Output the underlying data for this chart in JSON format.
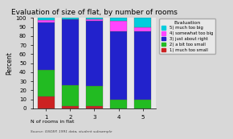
{
  "title": "Evaluation of size of flat, by number of rooms",
  "xlabel": "N of rooms in flat",
  "ylabel": "Percent",
  "source": "Source: GSOEP, 1991 data, student subsample",
  "categories": [
    1,
    2,
    3,
    4,
    5
  ],
  "legend_title": "Evaluation",
  "legend_labels": [
    "5) much too big",
    "4) somewhat too big",
    "3) just about right",
    "2) a bit too small",
    "1) much too small"
  ],
  "colors": [
    "#00ccdd",
    "#ff44ff",
    "#2222cc",
    "#22bb22",
    "#cc2222"
  ],
  "data": {
    "much_too_small": [
      13,
      3,
      3,
      0,
      0
    ],
    "bit_too_small": [
      30,
      23,
      22,
      10,
      10
    ],
    "just_right": [
      52,
      73,
      72,
      75,
      75
    ],
    "somewhat_too_big": [
      3,
      0,
      2,
      12,
      5
    ],
    "much_too_big": [
      2,
      1,
      1,
      3,
      10
    ]
  },
  "ylim": [
    0,
    100
  ],
  "yticks": [
    0,
    10,
    20,
    30,
    40,
    50,
    60,
    70,
    80,
    90,
    100
  ],
  "plot_bg": "#e8e8e8",
  "fig_bg": "#d8d8d8",
  "bar_width": 0.7
}
